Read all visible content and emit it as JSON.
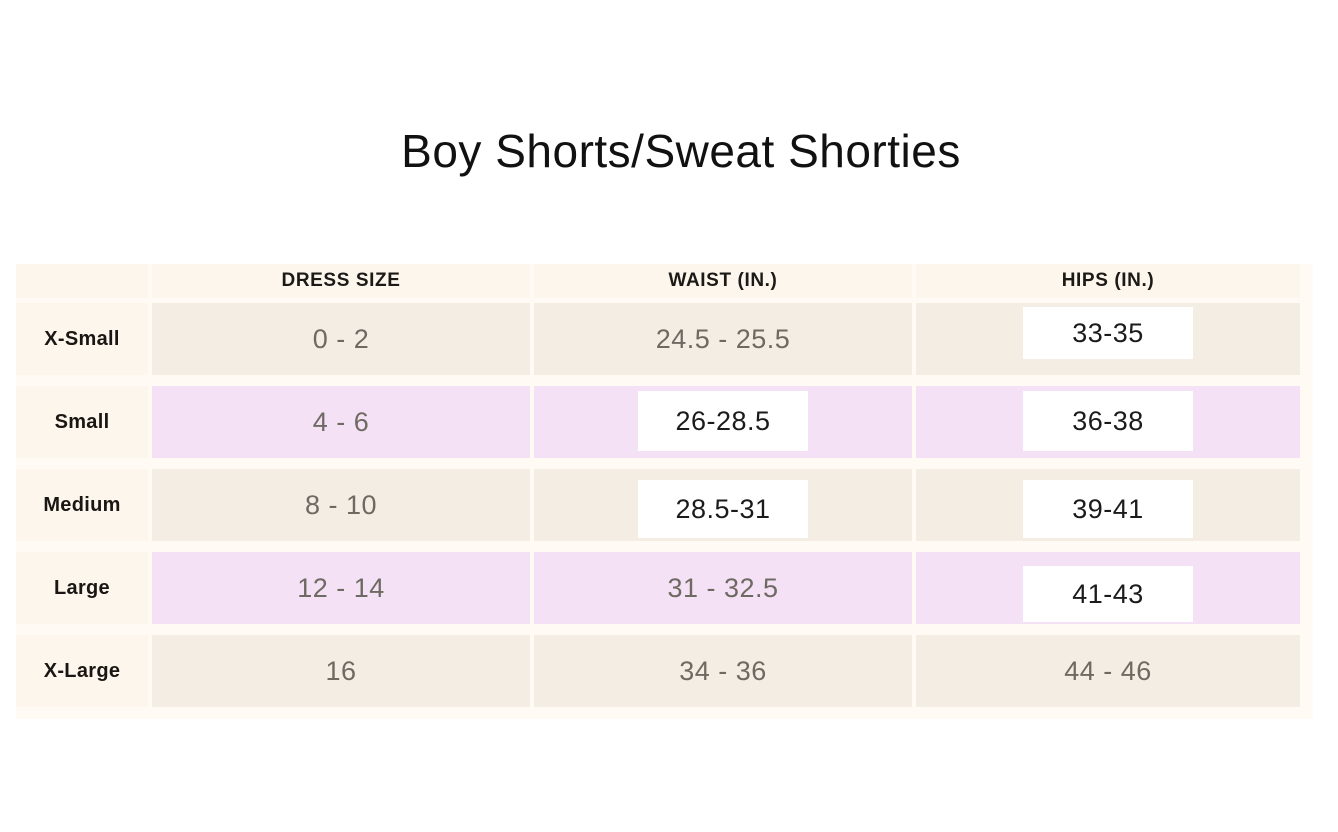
{
  "title": "Boy Shorts/Sweat Shorties",
  "table": {
    "header": {
      "size_col": "",
      "dress_size": "DRESS SIZE",
      "waist": "WAIST (IN.)",
      "hips": "HIPS (IN.)"
    },
    "rows": [
      {
        "label": "X-Small",
        "dress_size": "0 - 2",
        "waist": "24.5 - 25.5",
        "hips": "33-35"
      },
      {
        "label": "Small",
        "dress_size": "4 - 6",
        "waist": "26-28.5",
        "hips": "36-38"
      },
      {
        "label": "Medium",
        "dress_size": "8 - 10",
        "waist": "28.5-31",
        "hips": "39-41"
      },
      {
        "label": "Large",
        "dress_size": "12 - 14",
        "waist": "31 - 32.5",
        "hips": "41-43"
      },
      {
        "label": "X-Large",
        "dress_size": "16",
        "waist": "34 - 36",
        "hips": "44 - 46"
      }
    ]
  },
  "colors": {
    "page_background": "#ffffff",
    "table_background": "#fffaf3",
    "header_and_label_cells": "#fdf6ec",
    "row_beige": "#f3ede4",
    "row_pink": "#f5e1f5",
    "value_text": "#6e6a62",
    "label_text": "#191613",
    "patch_background": "#ffffff",
    "patch_text": "#1b1b1b"
  },
  "chart_data": {
    "type": "table",
    "title": "Boy Shorts/Sweat Shorties",
    "columns": [
      "",
      "DRESS SIZE",
      "WAIST (IN.)",
      "HIPS (IN.)"
    ],
    "rows": [
      [
        "X-Small",
        "0 - 2",
        "24.5 - 25.5",
        "33-35"
      ],
      [
        "Small",
        "4 - 6",
        "26-28.5",
        "36-38"
      ],
      [
        "Medium",
        "8 - 10",
        "28.5-31",
        "39-41"
      ],
      [
        "Large",
        "12 - 14",
        "31 - 32.5",
        "41-43"
      ],
      [
        "X-Large",
        "16",
        "34 - 36",
        "44 - 46"
      ]
    ],
    "notes": "Rows alternate beige/pink shading; six values appear on white overlay patches: X-Small hips, Small waist, Small hips, Medium waist, Medium hips, Large hips."
  }
}
